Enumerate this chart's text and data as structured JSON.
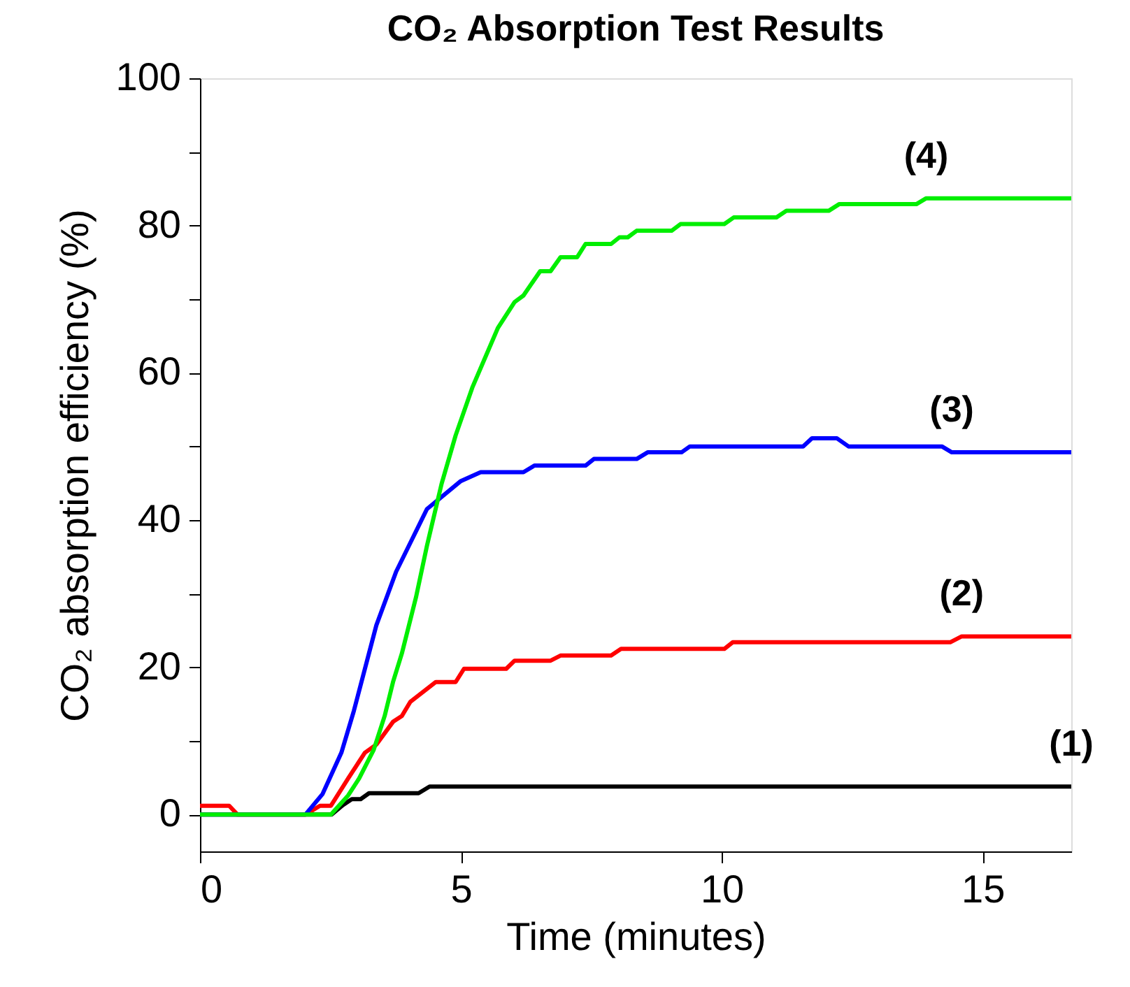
{
  "chart_data": {
    "type": "line",
    "title": "CO₂ Absorption Test Results",
    "xlabel": "Time (minutes)",
    "ylabel": "CO₂ absorption efficiency (%)",
    "xlim": [
      0,
      16.7
    ],
    "xticks": [
      0,
      5,
      10,
      15
    ],
    "ylim": [
      -5,
      100
    ],
    "yticks": [
      0,
      {
        "value": 10,
        "label": null
      },
      20,
      {
        "value": 30,
        "label": null
      },
      40,
      {
        "value": 50,
        "label": null
      },
      60,
      {
        "value": 70,
        "label": null
      },
      80,
      {
        "value": 90,
        "label": null
      },
      100
    ],
    "grid": false,
    "legend": false,
    "marker": "none",
    "line_style": "solid",
    "series": [
      {
        "name": "(1)",
        "color": "#000000",
        "x": [
          0,
          2.52,
          2.74,
          2.91,
          3.08,
          3.24,
          4.19,
          4.4,
          16.7
        ],
        "values": [
          0,
          0,
          1.3,
          2.1,
          2.1,
          2.9,
          2.9,
          3.8,
          3.8
        ]
      },
      {
        "name": "(2)",
        "color": "#ff0000",
        "x": [
          0,
          0.56,
          0.72,
          2.02,
          2.3,
          2.51,
          2.84,
          3.16,
          3.38,
          3.7,
          3.87,
          4.03,
          4.52,
          4.9,
          5.06,
          5.87,
          6.03,
          6.72,
          6.91,
          7.88,
          8.07,
          10.05,
          10.21,
          14.38,
          14.6,
          16.7
        ],
        "values": [
          1.2,
          1.2,
          0,
          0,
          1.2,
          1.2,
          4.9,
          8.4,
          9.5,
          12.6,
          13.4,
          15.3,
          18.0,
          18.0,
          19.8,
          19.8,
          20.9,
          20.9,
          21.6,
          21.6,
          22.5,
          22.5,
          23.4,
          23.4,
          24.2,
          24.2
        ]
      },
      {
        "name": "(3)",
        "color": "#0000ff",
        "x": [
          0,
          2.02,
          2.35,
          2.71,
          2.95,
          3.38,
          3.76,
          4.08,
          4.35,
          5.0,
          5.38,
          6.2,
          6.41,
          7.39,
          7.55,
          8.37,
          8.58,
          9.23,
          9.39,
          11.56,
          11.73,
          12.21,
          12.43,
          14.22,
          14.41,
          16.7
        ],
        "values": [
          0,
          0,
          2.8,
          8.4,
          14.1,
          25.7,
          33.0,
          37.6,
          41.5,
          45.3,
          46.5,
          46.5,
          47.4,
          47.4,
          48.3,
          48.3,
          49.2,
          49.2,
          50.0,
          50.0,
          51.1,
          51.1,
          50.0,
          50.0,
          49.2,
          49.2
        ]
      },
      {
        "name": "(4)",
        "color": "#00ee00",
        "x": [
          0,
          2.51,
          2.84,
          3.05,
          3.33,
          3.54,
          3.7,
          3.87,
          4.14,
          4.35,
          4.63,
          4.9,
          5.22,
          5.71,
          6.03,
          6.2,
          6.52,
          6.72,
          6.91,
          7.23,
          7.39,
          7.88,
          8.04,
          8.2,
          8.37,
          9.04,
          9.21,
          10.05,
          10.23,
          11.05,
          11.24,
          12.05,
          12.25,
          13.73,
          13.92,
          16.7
        ],
        "values": [
          0,
          0,
          2.6,
          4.9,
          8.8,
          13.4,
          18.0,
          21.9,
          29.5,
          36.5,
          44.9,
          51.5,
          58.0,
          66.1,
          69.6,
          70.5,
          73.8,
          73.8,
          75.7,
          75.7,
          77.5,
          77.5,
          78.4,
          78.4,
          79.3,
          79.3,
          80.2,
          80.2,
          81.1,
          81.1,
          82.0,
          82.0,
          82.9,
          82.9,
          83.7,
          83.7
        ]
      }
    ]
  }
}
